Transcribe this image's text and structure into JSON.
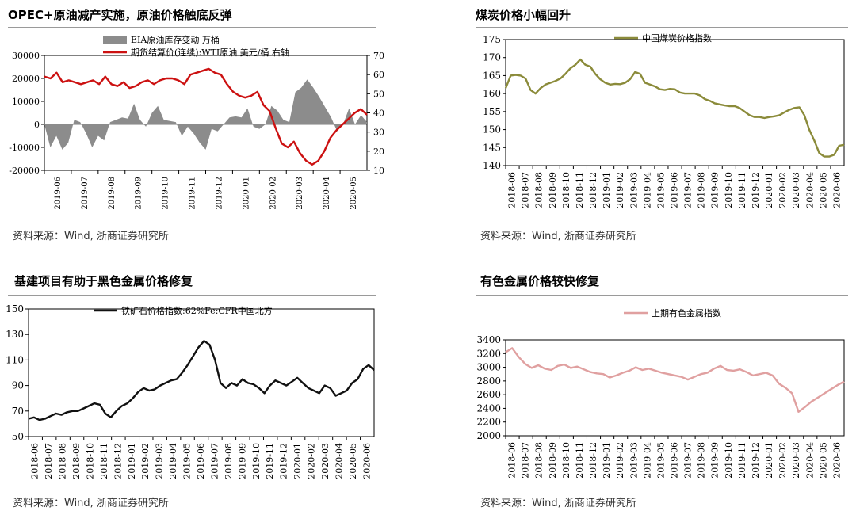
{
  "source_text": "资料来源：Wind, 浙商证券研究所",
  "chart_data": [
    {
      "id": "opec",
      "type": "bar+line",
      "title": "OPEC+原油减产实施，原油价格触底反弹",
      "x_ticks": [
        "2019-06",
        "2019-07",
        "2019-08",
        "2019-09",
        "2019-10",
        "2019-11",
        "2019-12",
        "2020-01",
        "2020-02",
        "2020-03",
        "2020-04",
        "2020-05"
      ],
      "y_left_ticks": [
        "30000",
        "20000",
        "10000",
        "0",
        "-10000",
        "-20000"
      ],
      "y_right_ticks": [
        "70",
        "60",
        "50",
        "40",
        "30",
        "20",
        "10"
      ],
      "ylim_left": [
        -20000,
        30000
      ],
      "ylim_right": [
        10,
        70
      ],
      "legend": [
        "EIA原油库存变动 万桶",
        "期货结算价(连续):WTI原油 美元/桶 右轴"
      ],
      "series": [
        {
          "name": "EIA原油库存变动 万桶",
          "axis": "left",
          "color": "#8c8c8c",
          "kind": "area",
          "values": [
            0,
            -10000,
            -5000,
            -11000,
            -8000,
            2000,
            1000,
            -4000,
            -10000,
            -5000,
            -7000,
            1000,
            2000,
            3000,
            2500,
            9000,
            2000,
            -1000,
            5000,
            8000,
            2000,
            1500,
            1000,
            -5000,
            -1000,
            -4000,
            -8000,
            -11000,
            -2000,
            -3000,
            0,
            3000,
            3500,
            3000,
            7000,
            -1000,
            -2000,
            0,
            8000,
            6000,
            2000,
            1000,
            14000,
            16000,
            19500,
            16000,
            12000,
            7500,
            3000,
            -3000,
            0,
            7000,
            0,
            4000,
            1000
          ]
        },
        {
          "name": "期货结算价(连续):WTI原油 美元/桶 右轴",
          "axis": "right",
          "color": "#cc1111",
          "kind": "line",
          "values": [
            59,
            58,
            61,
            56,
            57,
            56,
            55,
            56,
            57,
            55,
            59,
            55,
            54,
            56,
            53,
            54,
            56,
            57,
            55,
            57,
            58,
            58,
            57,
            55,
            60,
            61,
            62,
            63,
            61,
            60,
            55,
            51,
            49,
            48,
            49,
            51,
            44,
            41,
            32,
            24,
            22,
            25,
            19,
            15,
            13,
            15,
            20,
            27,
            31,
            34,
            37,
            40,
            42,
            39
          ]
        }
      ]
    },
    {
      "id": "coal",
      "type": "line",
      "title": "煤炭价格小幅回升",
      "x_ticks": [
        "2018-06",
        "2018-07",
        "2018-08",
        "2018-09",
        "2018-10",
        "2018-11",
        "2018-12",
        "2019-01",
        "2019-02",
        "2019-03",
        "2019-04",
        "2019-05",
        "2019-06",
        "2019-07",
        "2019-08",
        "2019-09",
        "2019-10",
        "2019-11",
        "2019-12",
        "2020-01",
        "2020-02",
        "2020-03",
        "2020-04",
        "2020-05",
        "2020-06"
      ],
      "y_ticks": [
        "175",
        "170",
        "165",
        "160",
        "155",
        "150",
        "145",
        "140"
      ],
      "ylim": [
        140,
        175
      ],
      "legend": [
        "中国煤炭价格指数"
      ],
      "series": [
        {
          "name": "中国煤炭价格指数",
          "color": "#8b8b3a",
          "values": [
            161.5,
            165,
            165.2,
            165,
            164.2,
            161,
            160,
            161.5,
            162.5,
            163,
            163.5,
            164.2,
            165.5,
            167,
            168,
            169.5,
            168,
            167.5,
            165.5,
            164,
            163,
            162.5,
            162.7,
            162.6,
            163,
            164,
            166,
            165.5,
            163,
            162.5,
            162,
            161.2,
            161,
            161.3,
            161.2,
            160.3,
            160,
            160,
            160,
            159.5,
            158.5,
            158,
            157.3,
            157,
            156.7,
            156.5,
            156.5,
            156,
            155,
            154,
            153.5,
            153.5,
            153.2,
            153.5,
            153.7,
            154,
            154.8,
            155.5,
            156,
            156.2,
            154,
            150,
            147,
            143.5,
            142.5,
            142.5,
            143,
            145.5,
            145.8
          ]
        }
      ]
    },
    {
      "id": "iron",
      "type": "line",
      "title": "基建项目有助于黑色金属价格修复",
      "x_ticks": [
        "2018-06",
        "2018-07",
        "2018-08",
        "2018-09",
        "2018-10",
        "2018-11",
        "2018-12",
        "2019-01",
        "2019-02",
        "2019-03",
        "2019-04",
        "2019-05",
        "2019-06",
        "2019-07",
        "2019-08",
        "2019-09",
        "2019-10",
        "2019-11",
        "2019-12",
        "2020-01",
        "2020-02",
        "2020-03",
        "2020-04",
        "2020-05",
        "2020-06"
      ],
      "y_ticks": [
        "150",
        "130",
        "110",
        "90",
        "70",
        "50"
      ],
      "ylim": [
        50,
        150
      ],
      "legend": [
        "铁矿石价格指数:62%Fe:CFR中国北方"
      ],
      "series": [
        {
          "name": "铁矿石价格指数:62%Fe:CFR中国北方",
          "color": "#111111",
          "values": [
            64,
            65,
            63,
            64,
            66,
            68,
            67,
            69,
            70,
            70,
            72,
            74,
            76,
            75,
            68,
            65,
            70,
            74,
            76,
            80,
            85,
            88,
            86,
            87,
            90,
            92,
            94,
            95,
            100,
            106,
            113,
            120,
            125,
            122,
            110,
            92,
            88,
            92,
            90,
            95,
            92,
            91,
            88,
            84,
            90,
            94,
            92,
            90,
            93,
            96,
            92,
            88,
            86,
            84,
            90,
            88,
            82,
            84,
            86,
            92,
            95,
            103,
            106,
            102
          ]
        }
      ]
    },
    {
      "id": "metal",
      "type": "line",
      "title": "有色金属价格较快修复",
      "x_ticks": [
        "2018-06",
        "2018-07",
        "2018-08",
        "2018-09",
        "2018-10",
        "2018-11",
        "2018-12",
        "2019-01",
        "2019-02",
        "2019-03",
        "2019-04",
        "2019-05",
        "2019-06",
        "2019-07",
        "2019-08",
        "2019-09",
        "2019-10",
        "2019-11",
        "2019-12",
        "2020-01",
        "2020-02",
        "2020-03",
        "2020-04",
        "2020-05",
        "2020-06"
      ],
      "y_ticks": [
        "3400",
        "3200",
        "3000",
        "2800",
        "2600",
        "2400",
        "2200",
        "2000"
      ],
      "ylim": [
        2000,
        3400
      ],
      "legend": [
        "上期有色金属指数"
      ],
      "series": [
        {
          "name": "上期有色金属指数",
          "color": "#e0a0a0",
          "values": [
            3220,
            3280,
            3150,
            3050,
            2990,
            3030,
            2980,
            2960,
            3020,
            3040,
            2990,
            3010,
            2970,
            2930,
            2910,
            2900,
            2850,
            2880,
            2920,
            2950,
            3000,
            2960,
            2980,
            2950,
            2920,
            2900,
            2880,
            2860,
            2820,
            2860,
            2900,
            2920,
            2980,
            3020,
            2960,
            2950,
            2970,
            2930,
            2880,
            2900,
            2920,
            2880,
            2760,
            2700,
            2620,
            2350,
            2420,
            2500,
            2560,
            2620,
            2680,
            2740,
            2790
          ]
        }
      ]
    }
  ]
}
